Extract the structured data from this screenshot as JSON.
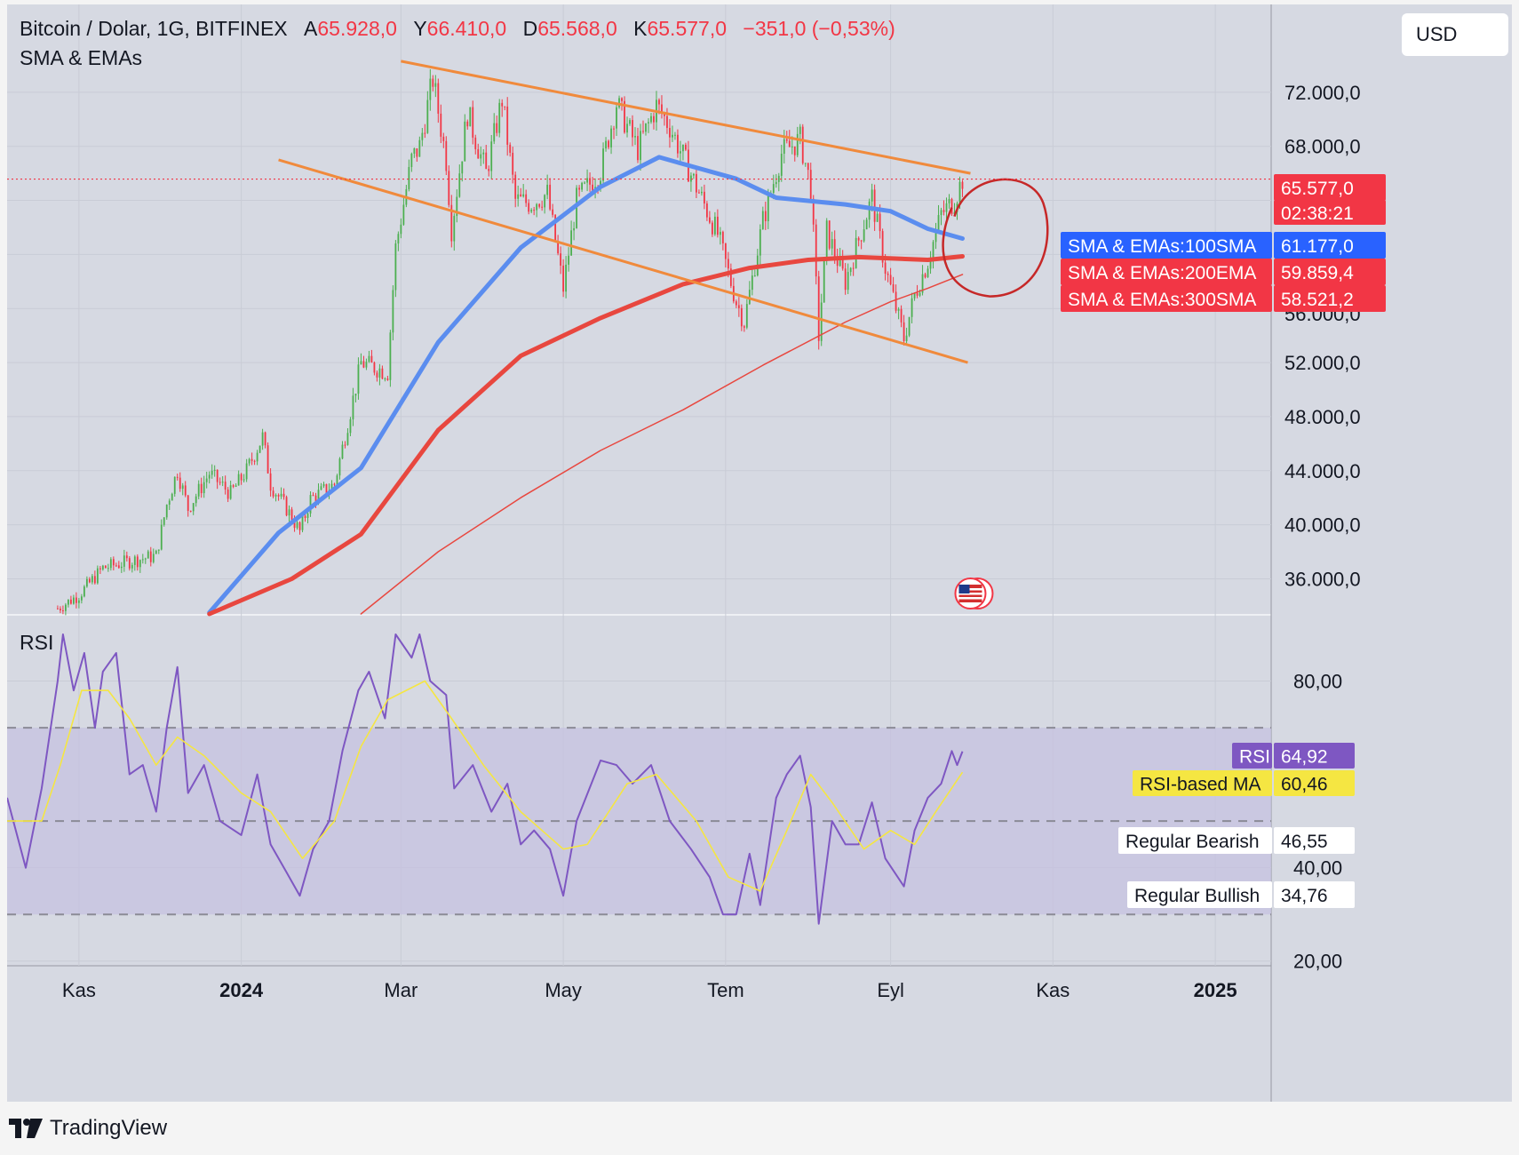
{
  "header": {
    "symbol": "Bitcoin / Dolar, 1G, BITFINEX",
    "open_label": "A",
    "open": "65.928,0",
    "high_label": "Y",
    "high": "66.410,0",
    "low_label": "D",
    "low": "65.568,0",
    "close_label": "K",
    "close": "65.577,0",
    "change": "−351,0 (−0,53%)",
    "indicator": "SMA & EMAs"
  },
  "currency": "USD",
  "watermark": "TradingView",
  "rsi_title": "RSI",
  "colors": {
    "up": "#4caf50",
    "down": "#f23645",
    "sma100": "#5b8def",
    "ema200": "#e8473f",
    "sma300": "#e8473f",
    "channel": "#f08a3c",
    "rsi": "#7e57c2",
    "rsi_ma": "#f5e642",
    "annotation": "#c62828"
  },
  "icons": {
    "flag": "us-flag-icon",
    "logo": "tradingview-logo-icon"
  },
  "price_labels": {
    "last_price": "65.577,0",
    "countdown": "02:38:21",
    "sma100_name": "SMA & EMAs:100SMA",
    "sma100_value": "61.177,0",
    "ema200_name": "SMA & EMAs:200EMA",
    "ema200_value": "59.859,4",
    "sma300_name": "SMA & EMAs:300SMA",
    "sma300_value": "58.521,2",
    "partial_tick": "56.000,0"
  },
  "rsi_labels": {
    "rsi_name": "RSI",
    "rsi_value": "64,92",
    "ma_name": "RSI-based MA",
    "ma_value": "60,46",
    "bearish_name": "Regular Bearish",
    "bearish_value": "46,55",
    "bullish_name": "Regular Bullish",
    "bullish_value": "34,76"
  },
  "chart_data": [
    {
      "type": "candlestick",
      "title": "Bitcoin / Dolar, 1G, BITFINEX",
      "y_ticks": [
        "72.000,0",
        "68.000,0",
        "52.000,0",
        "48.000,0",
        "44.000,0",
        "40.000,0",
        "36.000,0"
      ],
      "y_tick_values": [
        72000,
        68000,
        52000,
        48000,
        44000,
        40000,
        36000
      ],
      "ylim": [
        33400,
        78500
      ],
      "x_ticks": [
        "Kas",
        "2024",
        "Mar",
        "May",
        "Tem",
        "Eyl",
        "Kas",
        "2025"
      ],
      "x_tick_dates": [
        "2023-11-01",
        "2024-01-01",
        "2024-03-01",
        "2024-05-01",
        "2024-07-01",
        "2024-09-01",
        "2024-11-01",
        "2025-01-01"
      ],
      "xlim": [
        "2023-10-05",
        "2025-01-22"
      ],
      "close_path": [
        [
          "2023-10-24",
          33800
        ],
        [
          "2023-11-01",
          34800
        ],
        [
          "2023-11-10",
          36800
        ],
        [
          "2023-11-20",
          37300
        ],
        [
          "2023-11-30",
          37700
        ],
        [
          "2023-12-04",
          41500
        ],
        [
          "2023-12-08",
          44000
        ],
        [
          "2023-12-12",
          41200
        ],
        [
          "2023-12-20",
          43800
        ],
        [
          "2023-12-28",
          42300
        ],
        [
          "2024-01-03",
          44000
        ],
        [
          "2024-01-09",
          46500
        ],
        [
          "2024-01-12",
          43000
        ],
        [
          "2024-01-18",
          41200
        ],
        [
          "2024-01-23",
          39500
        ],
        [
          "2024-01-27",
          41900
        ],
        [
          "2024-02-05",
          43000
        ],
        [
          "2024-02-10",
          47500
        ],
        [
          "2024-02-15",
          52000
        ],
        [
          "2024-02-25",
          51300
        ],
        [
          "2024-02-28",
          60500
        ],
        [
          "2024-03-05",
          67000
        ],
        [
          "2024-03-08",
          68000
        ],
        [
          "2024-03-13",
          73000
        ],
        [
          "2024-03-18",
          67000
        ],
        [
          "2024-03-20",
          61900
        ],
        [
          "2024-03-26",
          70500
        ],
        [
          "2024-04-02",
          66000
        ],
        [
          "2024-04-08",
          71500
        ],
        [
          "2024-04-13",
          64000
        ],
        [
          "2024-04-19",
          63800
        ],
        [
          "2024-04-25",
          64500
        ],
        [
          "2024-05-01",
          57500
        ],
        [
          "2024-05-06",
          64000
        ],
        [
          "2024-05-15",
          66200
        ],
        [
          "2024-05-21",
          71200
        ],
        [
          "2024-05-29",
          67800
        ],
        [
          "2024-06-05",
          71000
        ],
        [
          "2024-06-10",
          69500
        ],
        [
          "2024-06-20",
          65000
        ],
        [
          "2024-06-28",
          61500
        ],
        [
          "2024-07-05",
          56500
        ],
        [
          "2024-07-08",
          55000
        ],
        [
          "2024-07-15",
          62500
        ],
        [
          "2024-07-22",
          67500
        ],
        [
          "2024-07-29",
          68500
        ],
        [
          "2024-08-02",
          65000
        ],
        [
          "2024-08-05",
          54000
        ],
        [
          "2024-08-08",
          61700
        ],
        [
          "2024-08-15",
          58000
        ],
        [
          "2024-08-25",
          64200
        ],
        [
          "2024-08-30",
          59000
        ],
        [
          "2024-09-06",
          53800
        ],
        [
          "2024-09-10",
          57000
        ],
        [
          "2024-09-15",
          59500
        ],
        [
          "2024-09-20",
          63000
        ],
        [
          "2024-09-25",
          64000
        ],
        [
          "2024-09-28",
          65577
        ]
      ],
      "series": [
        {
          "name": "SMA & EMAs:100SMA",
          "points": [
            [
              "2023-12-20",
              33500
            ],
            [
              "2024-01-15",
              39400
            ],
            [
              "2024-02-15",
              44200
            ],
            [
              "2024-03-15",
              53500
            ],
            [
              "2024-04-15",
              60500
            ],
            [
              "2024-05-15",
              65000
            ],
            [
              "2024-06-06",
              67200
            ],
            [
              "2024-06-15",
              66700
            ],
            [
              "2024-07-05",
              65600
            ],
            [
              "2024-07-20",
              64200
            ],
            [
              "2024-08-15",
              63700
            ],
            [
              "2024-09-01",
              63200
            ],
            [
              "2024-09-15",
              61900
            ],
            [
              "2024-09-28",
              61177
            ]
          ]
        },
        {
          "name": "SMA & EMAs:200EMA",
          "points": [
            [
              "2023-12-20",
              33400
            ],
            [
              "2024-01-20",
              36000
            ],
            [
              "2024-02-15",
              39300
            ],
            [
              "2024-03-15",
              47000
            ],
            [
              "2024-04-15",
              52500
            ],
            [
              "2024-05-15",
              55300
            ],
            [
              "2024-06-15",
              57800
            ],
            [
              "2024-07-10",
              59000
            ],
            [
              "2024-08-01",
              59600
            ],
            [
              "2024-08-20",
              59800
            ],
            [
              "2024-09-15",
              59600
            ],
            [
              "2024-09-28",
              59859
            ]
          ]
        },
        {
          "name": "SMA & EMAs:300SMA",
          "points": [
            [
              "2024-02-15",
              33400
            ],
            [
              "2024-03-15",
              38000
            ],
            [
              "2024-04-15",
              42000
            ],
            [
              "2024-05-15",
              45500
            ],
            [
              "2024-06-15",
              48500
            ],
            [
              "2024-07-15",
              51800
            ],
            [
              "2024-08-15",
              55000
            ],
            [
              "2024-09-01",
              56500
            ],
            [
              "2024-09-15",
              57500
            ],
            [
              "2024-09-28",
              58521
            ]
          ]
        }
      ],
      "trendlines": [
        {
          "name": "channel-upper",
          "from": [
            "2024-03-01",
            74300
          ],
          "to": [
            "2024-10-01",
            66000
          ]
        },
        {
          "name": "channel-lower",
          "from": [
            "2024-01-15",
            67000
          ],
          "to": [
            "2024-09-30",
            52000
          ]
        }
      ],
      "annotation": {
        "shape": "circle",
        "around": "2024-10-10"
      },
      "last_price": 65577,
      "grid": true,
      "legend": "right price scale labels"
    },
    {
      "type": "line",
      "title": "RSI",
      "y_ticks": [
        "80,00",
        "40,00",
        "20,00"
      ],
      "y_tick_values": [
        80,
        40,
        20
      ],
      "ylim": [
        19,
        94
      ],
      "bands": {
        "upper": 70,
        "middle": 50,
        "lower": 30
      },
      "series": [
        {
          "name": "RSI",
          "points": [
            [
              "2023-10-05",
              55
            ],
            [
              "2023-10-12",
              40
            ],
            [
              "2023-10-18",
              57
            ],
            [
              "2023-10-24",
              80
            ],
            [
              "2023-10-26",
              90
            ],
            [
              "2023-10-30",
              78
            ],
            [
              "2023-11-03",
              86
            ],
            [
              "2023-11-07",
              70
            ],
            [
              "2023-11-10",
              82
            ],
            [
              "2023-11-15",
              86
            ],
            [
              "2023-11-20",
              60
            ],
            [
              "2023-11-25",
              62
            ],
            [
              "2023-11-30",
              52
            ],
            [
              "2023-12-04",
              70
            ],
            [
              "2023-12-08",
              83
            ],
            [
              "2023-12-12",
              56
            ],
            [
              "2023-12-18",
              62
            ],
            [
              "2023-12-24",
              50
            ],
            [
              "2024-01-01",
              47
            ],
            [
              "2024-01-07",
              60
            ],
            [
              "2024-01-12",
              45
            ],
            [
              "2024-01-18",
              39
            ],
            [
              "2024-01-23",
              34
            ],
            [
              "2024-01-28",
              44
            ],
            [
              "2024-02-03",
              50
            ],
            [
              "2024-02-08",
              65
            ],
            [
              "2024-02-14",
              78
            ],
            [
              "2024-02-18",
              82
            ],
            [
              "2024-02-24",
              72
            ],
            [
              "2024-02-28",
              90
            ],
            [
              "2024-03-05",
              85
            ],
            [
              "2024-03-08",
              90
            ],
            [
              "2024-03-12",
              80
            ],
            [
              "2024-03-18",
              77
            ],
            [
              "2024-03-21",
              57
            ],
            [
              "2024-03-28",
              62
            ],
            [
              "2024-04-04",
              52
            ],
            [
              "2024-04-10",
              58
            ],
            [
              "2024-04-15",
              45
            ],
            [
              "2024-04-20",
              48
            ],
            [
              "2024-04-26",
              44
            ],
            [
              "2024-05-01",
              34
            ],
            [
              "2024-05-06",
              50
            ],
            [
              "2024-05-15",
              63
            ],
            [
              "2024-05-21",
              62
            ],
            [
              "2024-05-27",
              58
            ],
            [
              "2024-06-03",
              62
            ],
            [
              "2024-06-10",
              50
            ],
            [
              "2024-06-18",
              44
            ],
            [
              "2024-06-25",
              38
            ],
            [
              "2024-06-30",
              30
            ],
            [
              "2024-07-05",
              30
            ],
            [
              "2024-07-10",
              43
            ],
            [
              "2024-07-14",
              32
            ],
            [
              "2024-07-20",
              55
            ],
            [
              "2024-07-24",
              60
            ],
            [
              "2024-07-29",
              64
            ],
            [
              "2024-08-02",
              53
            ],
            [
              "2024-08-05",
              28
            ],
            [
              "2024-08-10",
              50
            ],
            [
              "2024-08-15",
              45
            ],
            [
              "2024-08-20",
              45
            ],
            [
              "2024-08-25",
              54
            ],
            [
              "2024-08-30",
              42
            ],
            [
              "2024-09-06",
              36
            ],
            [
              "2024-09-10",
              48
            ],
            [
              "2024-09-15",
              55
            ],
            [
              "2024-09-20",
              58
            ],
            [
              "2024-09-24",
              65
            ],
            [
              "2024-09-26",
              62
            ],
            [
              "2024-09-28",
              64.92
            ]
          ]
        },
        {
          "name": "RSI-based MA",
          "points": [
            [
              "2023-10-05",
              50
            ],
            [
              "2023-10-18",
              50
            ],
            [
              "2023-10-25",
              62
            ],
            [
              "2023-11-02",
              78
            ],
            [
              "2023-11-12",
              78
            ],
            [
              "2023-11-20",
              72
            ],
            [
              "2023-11-30",
              62
            ],
            [
              "2023-12-08",
              68
            ],
            [
              "2023-12-18",
              64
            ],
            [
              "2024-01-01",
              56
            ],
            [
              "2024-01-12",
              52
            ],
            [
              "2024-01-24",
              42
            ],
            [
              "2024-02-05",
              50
            ],
            [
              "2024-02-15",
              66
            ],
            [
              "2024-02-25",
              76
            ],
            [
              "2024-03-10",
              80
            ],
            [
              "2024-03-20",
              72
            ],
            [
              "2024-04-01",
              62
            ],
            [
              "2024-04-15",
              52
            ],
            [
              "2024-05-01",
              44
            ],
            [
              "2024-05-10",
              45
            ],
            [
              "2024-05-25",
              58
            ],
            [
              "2024-06-05",
              60
            ],
            [
              "2024-06-20",
              50
            ],
            [
              "2024-07-02",
              38
            ],
            [
              "2024-07-14",
              35
            ],
            [
              "2024-07-24",
              48
            ],
            [
              "2024-08-02",
              60
            ],
            [
              "2024-08-10",
              54
            ],
            [
              "2024-08-22",
              44
            ],
            [
              "2024-09-01",
              48
            ],
            [
              "2024-09-10",
              45
            ],
            [
              "2024-09-18",
              52
            ],
            [
              "2024-09-28",
              60.46
            ]
          ]
        }
      ],
      "grid": true
    }
  ]
}
